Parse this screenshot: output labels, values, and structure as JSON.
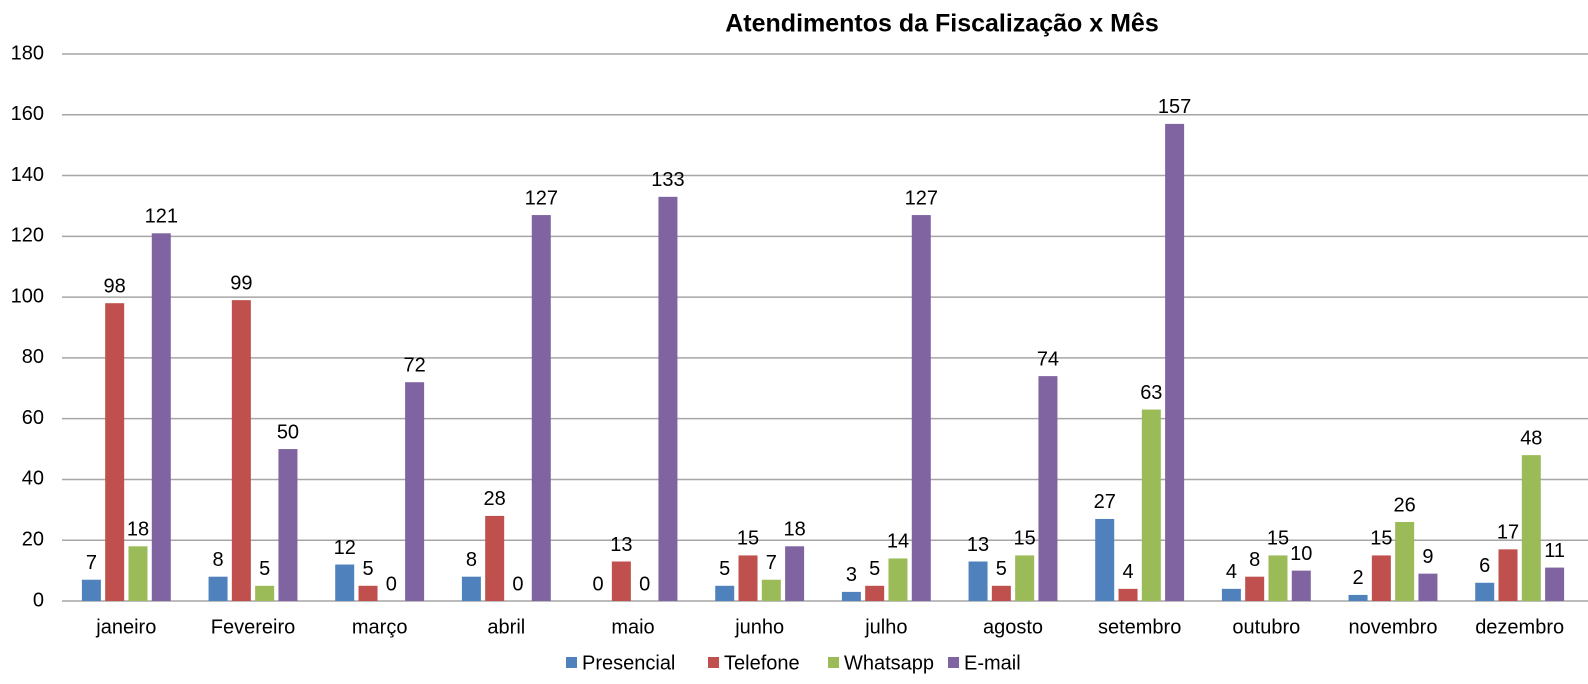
{
  "chart_data": {
    "type": "bar",
    "title": "Atendimentos da Fiscalização x Mês",
    "categories": [
      "janeiro",
      "Fevereiro",
      "março",
      "abril",
      "maio",
      "junho",
      "julho",
      "agosto",
      "setembro",
      "outubro",
      "novembro",
      "dezembro"
    ],
    "series": [
      {
        "name": "Presencial",
        "color": "#4f81bd",
        "values": [
          7,
          8,
          12,
          8,
          0,
          5,
          3,
          13,
          27,
          4,
          2,
          6
        ]
      },
      {
        "name": "Telefone",
        "color": "#c0504d",
        "values": [
          98,
          99,
          5,
          28,
          13,
          15,
          5,
          5,
          4,
          8,
          15,
          17
        ]
      },
      {
        "name": "Whatsapp",
        "color": "#9bbb59",
        "values": [
          18,
          5,
          0,
          0,
          0,
          7,
          14,
          15,
          63,
          15,
          26,
          48
        ]
      },
      {
        "name": "E-mail",
        "color": "#8064a2",
        "values": [
          121,
          50,
          72,
          127,
          133,
          18,
          127,
          74,
          157,
          10,
          9,
          11
        ]
      }
    ],
    "ylim": [
      0,
      180
    ],
    "yticks": [
      0,
      20,
      40,
      60,
      80,
      100,
      120,
      140,
      160,
      180
    ],
    "grid": true,
    "legend": "bottom"
  }
}
